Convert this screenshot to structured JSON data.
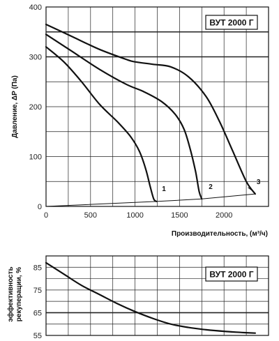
{
  "chart_data": [
    {
      "type": "line",
      "title": "ВУТ 2000 Г",
      "xlabel": "Производительность, (м³/ч)",
      "ylabel": "Давление, ΔP (Па)",
      "xlim": [
        0,
        2500
      ],
      "ylim": [
        0,
        400
      ],
      "x_ticks": [
        0,
        500,
        1000,
        1500,
        2000
      ],
      "y_ticks": [
        0,
        100,
        200,
        300,
        400
      ],
      "x_tick_labels": [
        "0",
        "500",
        "1000",
        "1500",
        "2000"
      ],
      "y_tick_labels": [
        "0",
        "100",
        "200",
        "300",
        "400"
      ],
      "grid": true,
      "series": [
        {
          "name": "1",
          "x": [
            0,
            200,
            400,
            600,
            800,
            950,
            1050,
            1120,
            1170,
            1210,
            1240
          ],
          "y": [
            320,
            290,
            250,
            205,
            170,
            140,
            110,
            75,
            40,
            15,
            10
          ]
        },
        {
          "name": "2",
          "x": [
            0,
            300,
            600,
            900,
            1100,
            1300,
            1450,
            1550,
            1620,
            1680,
            1720,
            1750
          ],
          "y": [
            345,
            310,
            275,
            245,
            230,
            210,
            185,
            155,
            115,
            70,
            30,
            15
          ]
        },
        {
          "name": "3",
          "x": [
            0,
            300,
            600,
            900,
            1000,
            1200,
            1400,
            1600,
            1800,
            1950,
            2100,
            2250,
            2350
          ],
          "y": [
            365,
            340,
            315,
            295,
            290,
            285,
            280,
            260,
            220,
            170,
            110,
            50,
            25
          ]
        },
        {
          "x": [
            0,
            1240,
            1750,
            2350
          ],
          "y": [
            0,
            10,
            15,
            25
          ]
        }
      ],
      "annotations": [
        "1",
        "2",
        "3"
      ]
    },
    {
      "type": "line",
      "title": "ВУТ 2000 Г",
      "ylabel": "эффективность рекуперации, %",
      "xlim": [
        0,
        2500
      ],
      "ylim": [
        55,
        90
      ],
      "y_ticks": [
        55,
        65,
        75,
        85
      ],
      "y_tick_labels": [
        "55",
        "65",
        "75",
        "85"
      ],
      "grid": true,
      "series": [
        {
          "x": [
            0,
            200,
            400,
            600,
            800,
            1000,
            1200,
            1400,
            1600,
            1800,
            2000,
            2200,
            2350
          ],
          "y": [
            87,
            82,
            77,
            73,
            69,
            65.5,
            62.5,
            60,
            58.5,
            57.5,
            56.8,
            56.3,
            56
          ]
        }
      ]
    }
  ]
}
